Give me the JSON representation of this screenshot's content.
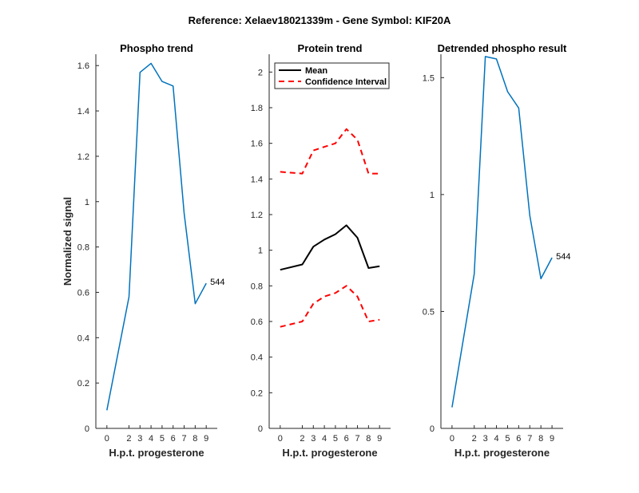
{
  "figure_title": "Reference:  Xelaev18021339m - Gene Symbol:  KIF20A",
  "colors": {
    "phospho": "#0072BD",
    "mean": "#000000",
    "ci": "#FF0000"
  },
  "chart_data": [
    {
      "type": "line",
      "title": "Phospho trend",
      "xlabel": "H.p.t. progesterone",
      "ylabel": "Normalized signal",
      "xticks": [
        0,
        2,
        3,
        4,
        5,
        6,
        7,
        8,
        9
      ],
      "yticks": [
        0,
        0.2,
        0.4,
        0.6,
        0.8,
        1,
        1.2,
        1.4,
        1.6
      ],
      "ytick_labels": [
        "0",
        "0.2",
        "0.4",
        "0.6",
        "0.8",
        "1",
        "1.2",
        "1.4",
        "1.6"
      ],
      "ylim": [
        0,
        1.65
      ],
      "series": [
        {
          "name": "Phospho",
          "x": [
            0,
            2,
            3,
            4,
            5,
            6,
            7,
            8,
            9
          ],
          "values": [
            0.08,
            0.58,
            1.57,
            1.61,
            1.53,
            1.51,
            0.95,
            0.55,
            0.64
          ]
        }
      ],
      "annotation": {
        "text": "544",
        "x": 9,
        "y": 0.64
      }
    },
    {
      "type": "line",
      "title": "Protein trend",
      "xlabel": "H.p.t. progesterone",
      "ylabel": "",
      "xticks": [
        0,
        2,
        3,
        4,
        5,
        6,
        7,
        8,
        9
      ],
      "yticks": [
        0,
        0.2,
        0.4,
        0.6,
        0.8,
        1,
        1.2,
        1.4,
        1.6,
        1.8,
        2
      ],
      "ytick_labels": [
        "0",
        "0.2",
        "0.4",
        "0.6",
        "0.8",
        "1",
        "1.2",
        "1.4",
        "1.6",
        "1.8",
        "2"
      ],
      "ylim": [
        0,
        2.1
      ],
      "series": [
        {
          "name": "Mean",
          "x": [
            0,
            2,
            3,
            4,
            5,
            6,
            7,
            8,
            9
          ],
          "values": [
            0.89,
            0.92,
            1.02,
            1.06,
            1.09,
            1.14,
            1.07,
            0.9,
            0.91
          ],
          "style": "solid"
        },
        {
          "name": "Confidence Interval",
          "x": [
            0,
            2,
            3,
            4,
            5,
            6,
            7,
            8,
            9
          ],
          "values": [
            1.44,
            1.43,
            1.56,
            1.58,
            1.6,
            1.68,
            1.62,
            1.43,
            1.43
          ],
          "style": "dashed"
        },
        {
          "name": "",
          "x": [
            0,
            2,
            3,
            4,
            5,
            6,
            7,
            8,
            9
          ],
          "values": [
            0.57,
            0.6,
            0.7,
            0.74,
            0.76,
            0.8,
            0.74,
            0.6,
            0.61
          ],
          "style": "dashed"
        }
      ],
      "legend": {
        "position": "top-left",
        "entries": [
          "Mean",
          "Confidence Interval"
        ]
      }
    },
    {
      "type": "line",
      "title": "Detrended phospho result",
      "xlabel": "H.p.t. progesterone",
      "ylabel": "",
      "xticks": [
        0,
        2,
        3,
        4,
        5,
        6,
        7,
        8,
        9
      ],
      "yticks": [
        0,
        0.5,
        1,
        1.5
      ],
      "ytick_labels": [
        "0",
        "0.5",
        "1",
        "1.5"
      ],
      "ylim": [
        0,
        1.6
      ],
      "series": [
        {
          "name": "Detrended",
          "x": [
            0,
            2,
            3,
            4,
            5,
            6,
            7,
            8,
            9
          ],
          "values": [
            0.09,
            0.66,
            1.59,
            1.58,
            1.44,
            1.37,
            0.91,
            0.64,
            0.73
          ]
        }
      ],
      "annotation": {
        "text": "544",
        "x": 9,
        "y": 0.73
      }
    }
  ]
}
